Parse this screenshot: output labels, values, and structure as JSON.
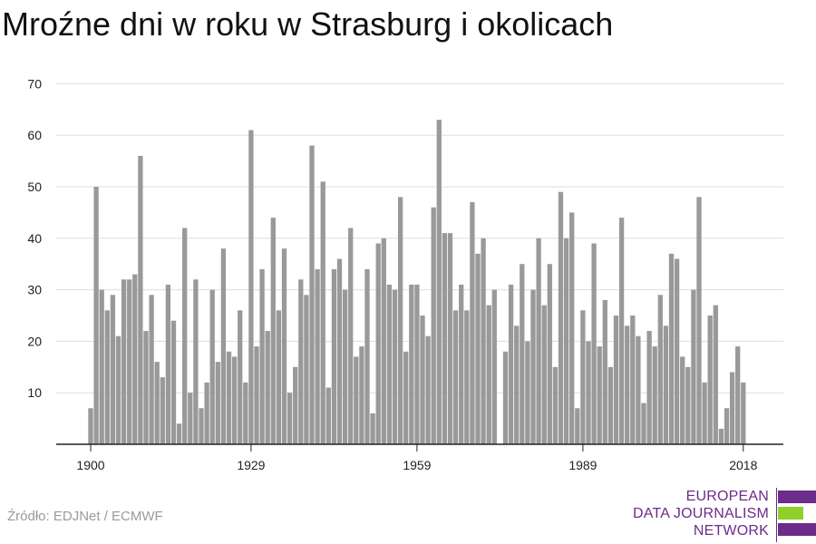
{
  "chart_data": {
    "type": "bar",
    "title": "Mroźne dni w roku w Strasburg i okolicach",
    "source": "Źródło: EDJNet / ECMWF",
    "xlabel": "",
    "ylabel": "",
    "x_start": 1900,
    "x_end": 2021,
    "x_ticks": [
      1900,
      1929,
      1959,
      1989,
      2018
    ],
    "ylim": [
      0,
      70
    ],
    "y_ticks": [
      10,
      20,
      30,
      40,
      50,
      60,
      70
    ],
    "y_tick_labels": [
      "10",
      "20",
      "30",
      "40",
      "50",
      "60",
      "70"
    ],
    "grid": true,
    "bar_color": "#999999",
    "values": [
      7,
      50,
      30,
      26,
      29,
      21,
      32,
      32,
      33,
      56,
      22,
      29,
      16,
      13,
      31,
      24,
      4,
      42,
      10,
      32,
      7,
      12,
      30,
      16,
      38,
      18,
      17,
      26,
      12,
      61,
      19,
      34,
      22,
      44,
      26,
      38,
      10,
      15,
      32,
      29,
      58,
      34,
      51,
      11,
      34,
      36,
      30,
      42,
      17,
      19,
      34,
      6,
      39,
      40,
      31,
      30,
      48,
      18,
      31,
      31,
      25,
      21,
      46,
      63,
      41,
      41,
      26,
      31,
      26,
      47,
      37,
      40,
      27,
      30,
      0,
      18,
      31,
      23,
      35,
      20,
      30,
      40,
      27,
      35,
      15,
      49,
      40,
      45,
      7,
      26,
      20,
      39,
      19,
      28,
      15,
      25,
      44,
      23,
      25,
      21,
      8,
      22,
      19,
      29,
      23,
      37,
      36,
      17,
      15,
      30,
      48,
      12,
      25,
      27,
      3,
      7,
      14,
      19,
      12
    ]
  },
  "logo": {
    "lines": [
      "EUROPEAN",
      "DATA JOURNALISM",
      "NETWORK"
    ],
    "colors": {
      "purple": "#6b2c8a",
      "green": "#8fd02a"
    }
  }
}
